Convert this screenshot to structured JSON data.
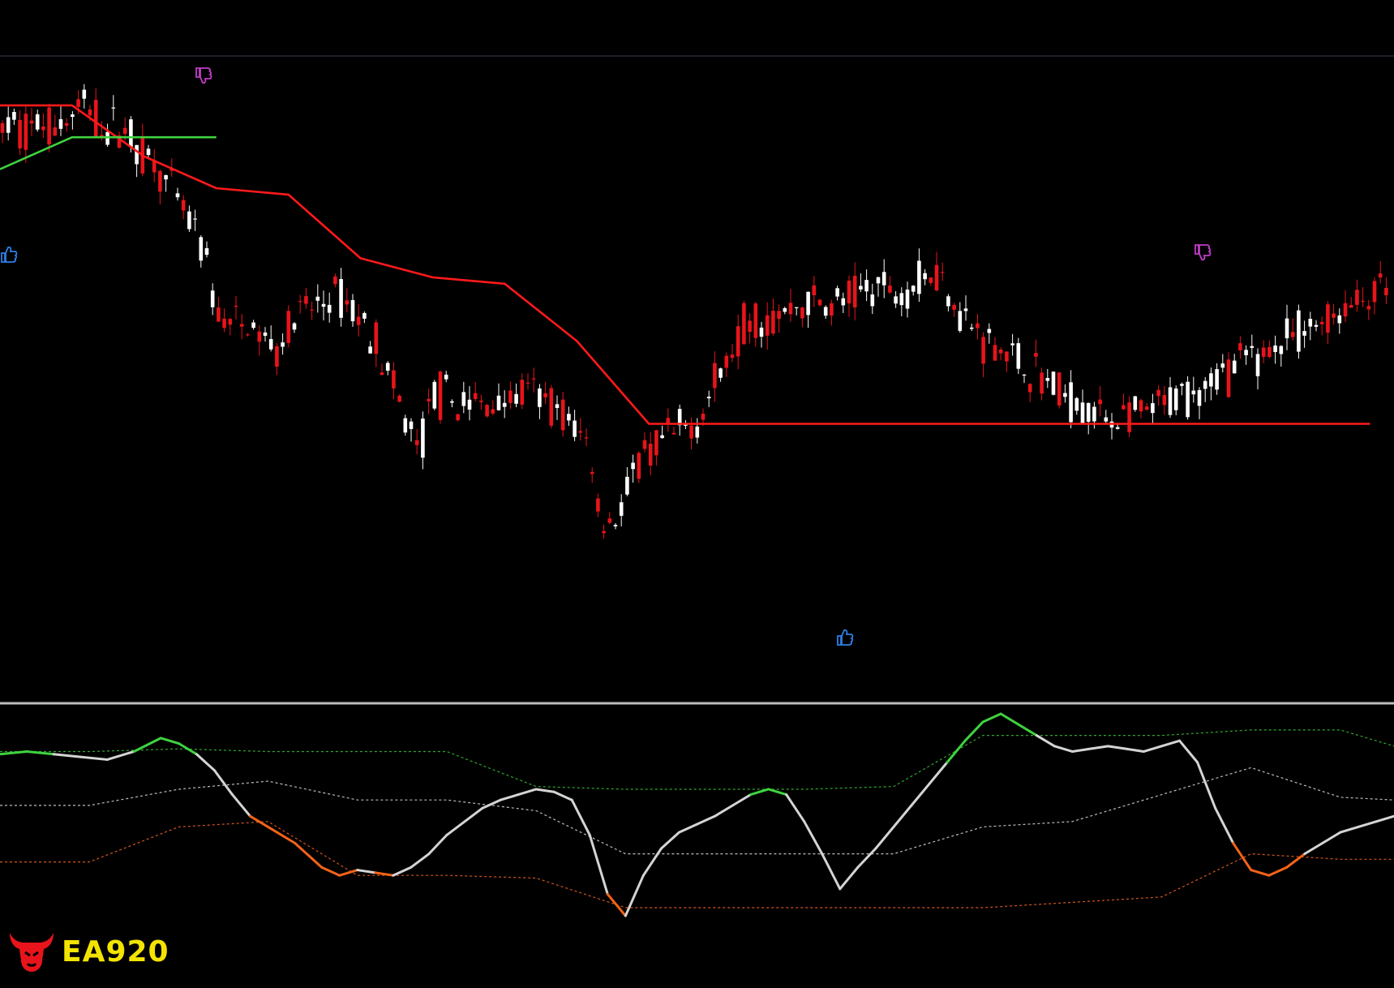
{
  "brand": {
    "logo_text": "EA920",
    "logo_icon": "bull-head-icon",
    "logo_color": "#e8141b",
    "text_color": "#f2e400"
  },
  "colors": {
    "background": "#000000",
    "bull_candle": "#ffffff",
    "bear_candle": "#e8141b",
    "upper_stop": "#ff1a1a",
    "lower_stop": "#3fd23f",
    "osc_bull": "#3fd23f",
    "osc_neutral": "#d4d4d4",
    "osc_bear": "#f26318",
    "band_upper": "#2ea82e",
    "band_mid": "#bdbdbd",
    "band_lower": "#d2561f",
    "buy_signal": "#2c7fe6",
    "sell_signal": "#c23cc8"
  },
  "chart_data": [
    {
      "type": "candlestick",
      "title": "",
      "xlabel": "",
      "ylabel": "",
      "ylim": [
        0,
        100
      ],
      "grid": false,
      "series": [
        {
          "name": "",
          "role": "price_anchor",
          "x": [
            0,
            10,
            20,
            30,
            40,
            50,
            60,
            70,
            80,
            90,
            100,
            110,
            120,
            130,
            140,
            150,
            160,
            170,
            180,
            190,
            200,
            210,
            220,
            230,
            240,
            250,
            260,
            270,
            280,
            290,
            300,
            310,
            320,
            330,
            340,
            350,
            360,
            370,
            380,
            390,
            400,
            410,
            420,
            430,
            440,
            450,
            460,
            470,
            480,
            490,
            500,
            510,
            520,
            530,
            540,
            550,
            560,
            570,
            580,
            590,
            600,
            610,
            620,
            630,
            640,
            650,
            660,
            670,
            680,
            690,
            700,
            710,
            720,
            730,
            740,
            750,
            760,
            770,
            780,
            790,
            800,
            810,
            820,
            830,
            840,
            850,
            860,
            870,
            880,
            890,
            900,
            910,
            920,
            930,
            940,
            950,
            960,
            970,
            980,
            990,
            1000,
            1010,
            1020,
            1030,
            1040,
            1050,
            1060,
            1070,
            1080,
            1090,
            1100,
            1110,
            1120,
            1130,
            1140,
            1150,
            1160
          ],
          "values": [
            89,
            90,
            89,
            90,
            90,
            90,
            91,
            93,
            91,
            89,
            90,
            88,
            85,
            84,
            80,
            77,
            74,
            70,
            60,
            59,
            58,
            58,
            56,
            55,
            58,
            60,
            61,
            62,
            63,
            62,
            59,
            58,
            52,
            47,
            42,
            39,
            48,
            47,
            46,
            46,
            46,
            46,
            47,
            47,
            48,
            47,
            46,
            44,
            42,
            40,
            27,
            28,
            31,
            36,
            38,
            40,
            41,
            42,
            44,
            47,
            51,
            55,
            59,
            60,
            59,
            60,
            61,
            62,
            62,
            61,
            62,
            63,
            64,
            65,
            64,
            64,
            65,
            66,
            67,
            65,
            60,
            58,
            56,
            55,
            54,
            52,
            51,
            50,
            48,
            47,
            46,
            45,
            44,
            44,
            44,
            44,
            45,
            46,
            47,
            48,
            49,
            50,
            51,
            52,
            53,
            54,
            55,
            56,
            57,
            58,
            59,
            60,
            61,
            62,
            63,
            64,
            65
          ]
        },
        {
          "name": "",
          "role": "upper_stop",
          "x": [
            0,
            60,
            120,
            180,
            240,
            300,
            360,
            420,
            480,
            540,
            600,
            660,
            720,
            780,
            840,
            900,
            960,
            1020,
            1080,
            1140
          ],
          "values": [
            93,
            93,
            85,
            80,
            79,
            69,
            66,
            65,
            56,
            43,
            43,
            43,
            43,
            43,
            43,
            43,
            43,
            43,
            43,
            43
          ]
        },
        {
          "name": "",
          "role": "lower_stop",
          "x": [
            0,
            60,
            120,
            180
          ],
          "values": [
            83,
            88,
            88,
            88
          ]
        }
      ]
    },
    {
      "type": "line",
      "title": "",
      "xlabel": "",
      "ylabel": "",
      "ylim": [
        0,
        100
      ],
      "grid": false,
      "series": [
        {
          "name": "",
          "role": "oscillator",
          "x": [
            0,
            30,
            60,
            90,
            120,
            150,
            180,
            200,
            220,
            240,
            260,
            280,
            300,
            330,
            360,
            380,
            400,
            420,
            440,
            460,
            480,
            500,
            520,
            540,
            560,
            580,
            600,
            620,
            640,
            660,
            680,
            700,
            720,
            740,
            760,
            780,
            800,
            820,
            840,
            860,
            880,
            900,
            920,
            940,
            960,
            980,
            1000,
            1020,
            1040,
            1060,
            1080,
            1100,
            1120,
            1140,
            1160,
            1180,
            1200,
            1220,
            1240,
            1260,
            1280,
            1300,
            1320,
            1340,
            1360,
            1380,
            1400,
            1420,
            1440,
            1460,
            1480,
            1500,
            1520,
            1540,
            1560
          ],
          "values": [
            85,
            86,
            85,
            84,
            83,
            86,
            91,
            89,
            85,
            79,
            70,
            62,
            58,
            52,
            43,
            40,
            42,
            41,
            40,
            43,
            48,
            55,
            60,
            65,
            68,
            70,
            72,
            71,
            68,
            55,
            33,
            25,
            40,
            50,
            56,
            59,
            62,
            66,
            70,
            72,
            70,
            60,
            48,
            35,
            43,
            50,
            58,
            66,
            74,
            82,
            90,
            97,
            100,
            96,
            92,
            88,
            86,
            87,
            88,
            87,
            86,
            88,
            90,
            82,
            65,
            52,
            42,
            40,
            43,
            48,
            52,
            56,
            58,
            60,
            62
          ]
        },
        {
          "name": "",
          "role": "upper_band",
          "x": [
            0,
            100,
            200,
            300,
            400,
            500,
            600,
            700,
            800,
            900,
            1000,
            1100,
            1200,
            1300,
            1400,
            1500,
            1560
          ],
          "values": [
            86,
            86,
            87,
            86,
            86,
            86,
            73,
            72,
            72,
            72,
            73,
            92,
            92,
            92,
            94,
            94,
            88
          ]
        },
        {
          "name": "",
          "role": "middle_band",
          "x": [
            0,
            100,
            200,
            300,
            400,
            500,
            600,
            700,
            800,
            900,
            1000,
            1100,
            1200,
            1300,
            1400,
            1500,
            1560
          ],
          "values": [
            66,
            66,
            72,
            75,
            68,
            68,
            64,
            48,
            48,
            48,
            48,
            58,
            60,
            70,
            80,
            69,
            68
          ]
        },
        {
          "name": "",
          "role": "lower_band",
          "x": [
            0,
            100,
            200,
            300,
            400,
            500,
            600,
            700,
            800,
            900,
            1000,
            1100,
            1200,
            1300,
            1400,
            1500,
            1560
          ],
          "values": [
            45,
            45,
            58,
            60,
            40,
            40,
            39,
            28,
            28,
            28,
            28,
            28,
            30,
            32,
            48,
            46,
            46
          ]
        }
      ]
    }
  ]
}
